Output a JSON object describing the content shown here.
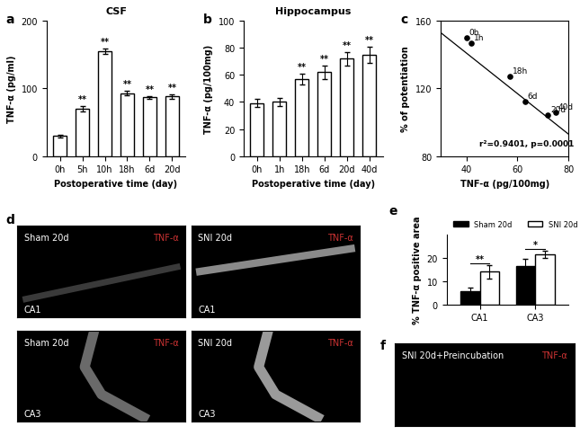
{
  "chart_data": [
    {
      "type": "bar",
      "panel": "a",
      "title": "CSF",
      "xlabel": "Postoperative time (day)",
      "ylabel": "TNF-α (pg/ml)",
      "categories": [
        "0h",
        "5h",
        "10h",
        "18h",
        "6d",
        "20d"
      ],
      "values": [
        30,
        70,
        155,
        93,
        87,
        88
      ],
      "errors": [
        2,
        4,
        4,
        3,
        2,
        3
      ],
      "significance": [
        null,
        "**",
        "**",
        "**",
        "**",
        "**"
      ],
      "color": "white",
      "ylim": [
        0,
        200
      ],
      "yticks": [
        0,
        100,
        200
      ]
    },
    {
      "type": "bar",
      "panel": "b",
      "title": "Hippocampus",
      "xlabel": "Postoperative time (day)",
      "ylabel": "TNF-α (pg/100mg)",
      "categories": [
        "0h",
        "1h",
        "18h",
        "6d",
        "20d",
        "40d"
      ],
      "values": [
        39,
        40,
        57,
        62,
        72,
        75
      ],
      "errors": [
        3,
        3,
        4,
        5,
        5,
        6
      ],
      "significance": [
        null,
        null,
        "**",
        "**",
        "**",
        "**"
      ],
      "color": "white",
      "ylim": [
        0,
        100
      ],
      "yticks": [
        0,
        20,
        40,
        60,
        80,
        100
      ]
    },
    {
      "type": "scatter",
      "panel": "c",
      "xlabel": "TNF-α (pg/100mg)",
      "ylabel": "% of potentiation",
      "x": [
        40,
        42,
        57,
        63,
        72,
        75
      ],
      "values": [
        150,
        147,
        127,
        112,
        104,
        106
      ],
      "point_labels": [
        "0h",
        "1h",
        "18h",
        "6d",
        "20d",
        "40d"
      ],
      "fit_line": {
        "x": [
          30,
          80
        ],
        "y": [
          153,
          93
        ]
      },
      "annotations": [
        "r²=0.9401, p=0.0001"
      ],
      "color": "black",
      "xlim": [
        30,
        80
      ],
      "xticks": [
        40,
        60,
        80
      ],
      "ylim": [
        80,
        160
      ],
      "yticks": [
        80,
        120,
        160
      ]
    },
    {
      "type": "image",
      "panel": "d",
      "images": [
        {
          "title": "Sham 20d",
          "stain": "TNF-α",
          "region": "CA1"
        },
        {
          "title": "SNI 20d",
          "stain": "TNF-α",
          "region": "CA1"
        },
        {
          "title": "Sham 20d",
          "stain": "TNF-α",
          "region": "CA3"
        },
        {
          "title": "SNI 20d",
          "stain": "TNF-α",
          "region": "CA3"
        }
      ]
    },
    {
      "type": "grouped_bar",
      "panel": "e",
      "ylabel": "% TNF-α positive area",
      "categories": [
        "CA1",
        "CA3"
      ],
      "series": [
        {
          "name": "Sham 20d",
          "color": "black",
          "values": [
            5.5,
            16.5
          ],
          "errors": [
            1.5,
            3
          ]
        },
        {
          "name": "SNI 20d",
          "color": "white",
          "values": [
            14,
            21.5
          ],
          "errors": [
            3,
            1.5
          ]
        }
      ],
      "significance": [
        "**",
        "*"
      ],
      "legend": "upper left",
      "ylim": [
        0,
        30
      ],
      "yticks": [
        0,
        10,
        20
      ]
    },
    {
      "type": "image",
      "panel": "f",
      "images": [
        {
          "title": "SNI 20d+Preincubation",
          "stain": "TNF-α"
        }
      ]
    }
  ]
}
